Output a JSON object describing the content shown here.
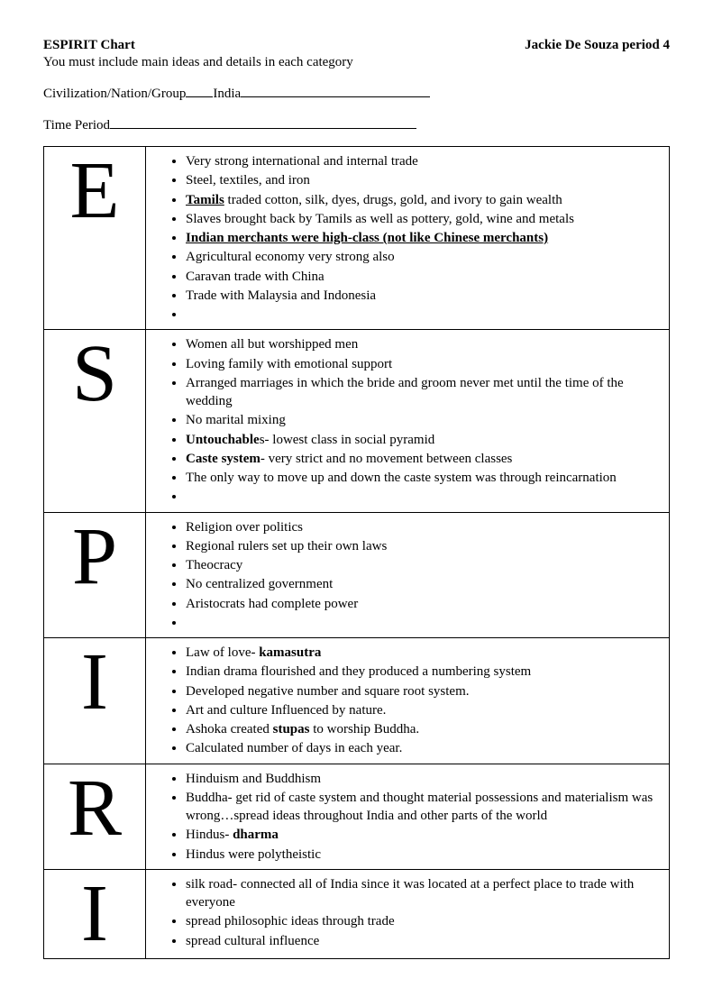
{
  "header": {
    "title": "ESPIRIT Chart",
    "student": "Jackie De Souza period 4",
    "subtitle": "You must include main ideas and details in each category",
    "civ_label": "Civilization/Nation/Group",
    "civ_value": "India",
    "time_label": "Time Period"
  },
  "rows": [
    {
      "letter": "E",
      "items": [
        {
          "text": "Very strong international and internal trade"
        },
        {
          "text": "Steel, textiles, and iron"
        },
        {
          "html": "<span class=\"bu\">Tamils</span> traded cotton, silk, dyes, drugs, gold, and ivory to gain wealth"
        },
        {
          "text": "Slaves brought back by Tamils as well as pottery, gold, wine and metals"
        },
        {
          "html": "<span class=\"bu\">Indian merchants were high-class (not like Chinese merchants)</span>"
        },
        {
          "text": "Agricultural economy very strong also"
        },
        {
          "text": "Caravan trade with China"
        },
        {
          "text": "Trade with Malaysia and Indonesia"
        },
        {
          "text": ""
        }
      ]
    },
    {
      "letter": "S",
      "items": [
        {
          "text": "Women all but worshipped men"
        },
        {
          "text": "Loving family with emotional support"
        },
        {
          "text": "Arranged marriages in which the bride and groom never met until the time of the wedding"
        },
        {
          "text": "No marital mixing"
        },
        {
          "html": "<span class=\"bold\">Untouchable</span>s- lowest class in social pyramid"
        },
        {
          "html": "<span class=\"bold\">Caste system</span>- very strict and no movement between classes"
        },
        {
          "text": "The only way to move up and down the caste system was through reincarnation"
        },
        {
          "text": ""
        }
      ]
    },
    {
      "letter": "P",
      "items": [
        {
          "text": "Religion over politics"
        },
        {
          "text": "Regional rulers set up their own laws"
        },
        {
          "text": "Theocracy"
        },
        {
          "text": "No centralized government"
        },
        {
          "text": "Aristocrats had complete power"
        },
        {
          "text": ""
        }
      ]
    },
    {
      "letter": "I",
      "items": [
        {
          "html": "Law of love- <span class=\"bold\">kamasutra</span>"
        },
        {
          "text": "Indian drama flourished and they produced a numbering system"
        },
        {
          "text": "Developed negative number and square root system."
        },
        {
          "text": "Art and culture Influenced by nature."
        },
        {
          "html": "Ashoka created <span class=\"bold\">stupas</span> to worship Buddha."
        },
        {
          "text": "Calculated number of days in each year."
        }
      ]
    },
    {
      "letter": "R",
      "items": [
        {
          "text": "Hinduism and Buddhism"
        },
        {
          "text": "Buddha- get rid of caste system and thought material possessions and materialism was wrong…spread ideas throughout India and other parts of the world"
        },
        {
          "html": "Hindus- <span class=\"bold\">dharma</span>"
        },
        {
          "text": "Hindus were polytheistic"
        }
      ]
    },
    {
      "letter": "I",
      "items": [
        {
          "text": "silk road- connected all of India since it was located at a perfect place to trade with everyone"
        },
        {
          "text": "spread philosophic ideas through trade"
        },
        {
          "text": "spread cultural influence"
        }
      ]
    }
  ]
}
